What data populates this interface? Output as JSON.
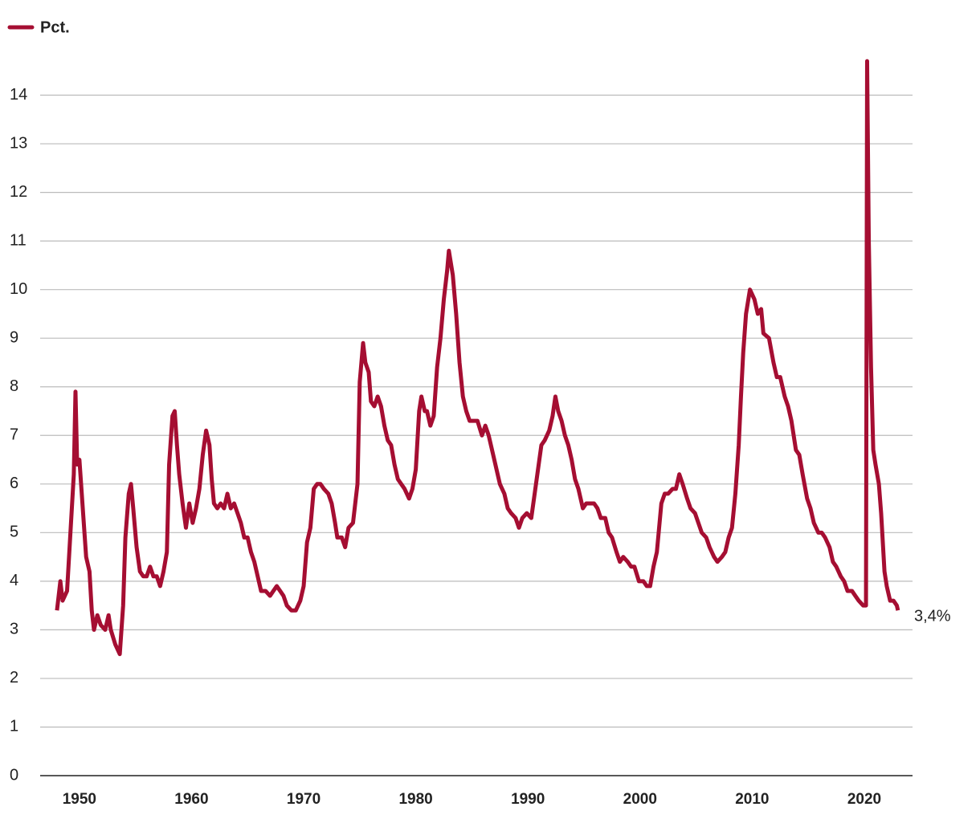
{
  "chart_data": {
    "type": "line",
    "legend_position": "top-left",
    "grid": true,
    "xlim": [
      1946.5,
      2024.3
    ],
    "ylim": [
      0,
      15
    ],
    "xticks": [
      1950,
      1960,
      1970,
      1980,
      1990,
      2000,
      2010,
      2020
    ],
    "yticks": [
      0,
      1,
      2,
      3,
      4,
      5,
      6,
      7,
      8,
      9,
      10,
      11,
      12,
      13,
      14
    ],
    "x": [
      1948.0,
      1948.3,
      1948.5,
      1948.9,
      1949.2,
      1949.5,
      1949.65,
      1949.8,
      1950.0,
      1950.3,
      1950.6,
      1950.9,
      1951.1,
      1951.3,
      1951.6,
      1951.9,
      1952.3,
      1952.6,
      1952.8,
      1953.2,
      1953.6,
      1953.9,
      1954.1,
      1954.4,
      1954.6,
      1954.8,
      1955.1,
      1955.4,
      1955.7,
      1956.0,
      1956.3,
      1956.6,
      1956.9,
      1957.2,
      1957.5,
      1957.8,
      1958.0,
      1958.3,
      1958.5,
      1958.7,
      1958.9,
      1959.2,
      1959.5,
      1959.8,
      1960.1,
      1960.4,
      1960.7,
      1961.0,
      1961.3,
      1961.6,
      1961.8,
      1962.0,
      1962.3,
      1962.6,
      1962.9,
      1963.2,
      1963.5,
      1963.8,
      1964.1,
      1964.4,
      1964.7,
      1965.0,
      1965.3,
      1965.6,
      1965.9,
      1966.2,
      1966.6,
      1967.0,
      1967.3,
      1967.6,
      1967.9,
      1968.2,
      1968.5,
      1968.9,
      1969.3,
      1969.7,
      1970.0,
      1970.3,
      1970.6,
      1970.9,
      1971.2,
      1971.5,
      1971.8,
      1972.2,
      1972.5,
      1972.8,
      1973.0,
      1973.4,
      1973.7,
      1974.0,
      1974.4,
      1974.8,
      1975.0,
      1975.3,
      1975.5,
      1975.8,
      1976.0,
      1976.3,
      1976.6,
      1976.9,
      1977.2,
      1977.5,
      1977.8,
      1978.1,
      1978.4,
      1978.7,
      1979.0,
      1979.4,
      1979.7,
      1980.0,
      1980.3,
      1980.5,
      1980.8,
      1981.0,
      1981.3,
      1981.6,
      1981.9,
      1982.2,
      1982.5,
      1982.8,
      1982.95,
      1983.3,
      1983.6,
      1983.9,
      1984.2,
      1984.5,
      1984.8,
      1985.2,
      1985.5,
      1985.9,
      1986.2,
      1986.5,
      1986.9,
      1987.2,
      1987.5,
      1987.9,
      1988.2,
      1988.5,
      1988.9,
      1989.2,
      1989.5,
      1989.9,
      1990.3,
      1990.6,
      1990.9,
      1991.2,
      1991.5,
      1991.9,
      1992.2,
      1992.45,
      1992.7,
      1993.0,
      1993.3,
      1993.6,
      1993.9,
      1994.2,
      1994.5,
      1994.9,
      1995.2,
      1995.5,
      1995.9,
      1996.2,
      1996.5,
      1996.9,
      1997.2,
      1997.5,
      1997.9,
      1998.2,
      1998.5,
      1998.9,
      1999.2,
      1999.5,
      1999.9,
      2000.3,
      2000.6,
      2000.9,
      2001.2,
      2001.5,
      2001.9,
      2002.2,
      2002.5,
      2002.9,
      2003.2,
      2003.5,
      2003.8,
      2004.2,
      2004.5,
      2004.9,
      2005.2,
      2005.5,
      2005.9,
      2006.2,
      2006.6,
      2006.9,
      2007.3,
      2007.6,
      2007.9,
      2008.2,
      2008.5,
      2008.8,
      2009.0,
      2009.2,
      2009.45,
      2009.8,
      2010.2,
      2010.5,
      2010.8,
      2011.0,
      2011.5,
      2011.9,
      2012.2,
      2012.5,
      2012.9,
      2013.2,
      2013.5,
      2013.9,
      2014.2,
      2014.5,
      2014.9,
      2015.2,
      2015.5,
      2015.9,
      2016.2,
      2016.5,
      2016.9,
      2017.2,
      2017.5,
      2017.9,
      2018.2,
      2018.5,
      2018.9,
      2019.2,
      2019.5,
      2019.9,
      2020.15,
      2020.25,
      2020.4,
      2020.6,
      2020.8,
      2021.0,
      2021.3,
      2021.5,
      2021.8,
      2022.0,
      2022.3,
      2022.6,
      2022.9,
      2023.0
    ],
    "series": [
      {
        "name": "Pct.",
        "color": "#a50e32",
        "values": [
          3.4,
          4.0,
          3.6,
          3.8,
          5.0,
          6.2,
          7.9,
          6.4,
          6.5,
          5.5,
          4.5,
          4.2,
          3.4,
          3.0,
          3.3,
          3.1,
          3.0,
          3.3,
          3.0,
          2.7,
          2.5,
          3.5,
          4.9,
          5.8,
          6.0,
          5.5,
          4.7,
          4.2,
          4.1,
          4.1,
          4.3,
          4.1,
          4.1,
          3.9,
          4.2,
          4.6,
          6.4,
          7.4,
          7.5,
          6.8,
          6.2,
          5.6,
          5.1,
          5.6,
          5.2,
          5.5,
          5.9,
          6.6,
          7.1,
          6.8,
          6.1,
          5.6,
          5.5,
          5.6,
          5.5,
          5.8,
          5.5,
          5.6,
          5.4,
          5.2,
          4.9,
          4.9,
          4.6,
          4.4,
          4.1,
          3.8,
          3.8,
          3.7,
          3.8,
          3.9,
          3.8,
          3.7,
          3.5,
          3.4,
          3.4,
          3.6,
          3.9,
          4.8,
          5.1,
          5.9,
          6.0,
          6.0,
          5.9,
          5.8,
          5.6,
          5.2,
          4.9,
          4.9,
          4.7,
          5.1,
          5.2,
          6.0,
          8.1,
          8.9,
          8.5,
          8.3,
          7.7,
          7.6,
          7.8,
          7.6,
          7.2,
          6.9,
          6.8,
          6.4,
          6.1,
          6.0,
          5.9,
          5.7,
          5.9,
          6.3,
          7.5,
          7.8,
          7.5,
          7.5,
          7.2,
          7.4,
          8.4,
          9.0,
          9.8,
          10.4,
          10.8,
          10.3,
          9.5,
          8.5,
          7.8,
          7.5,
          7.3,
          7.3,
          7.3,
          7.0,
          7.2,
          7.0,
          6.6,
          6.3,
          6.0,
          5.8,
          5.5,
          5.4,
          5.3,
          5.1,
          5.3,
          5.4,
          5.3,
          5.8,
          6.3,
          6.8,
          6.9,
          7.1,
          7.4,
          7.8,
          7.5,
          7.3,
          7.0,
          6.8,
          6.5,
          6.1,
          5.9,
          5.5,
          5.6,
          5.6,
          5.6,
          5.5,
          5.3,
          5.3,
          5.0,
          4.9,
          4.6,
          4.4,
          4.5,
          4.4,
          4.3,
          4.3,
          4.0,
          4.0,
          3.9,
          3.9,
          4.3,
          4.6,
          5.6,
          5.8,
          5.8,
          5.9,
          5.9,
          6.2,
          6.0,
          5.7,
          5.5,
          5.4,
          5.2,
          5.0,
          4.9,
          4.7,
          4.5,
          4.4,
          4.5,
          4.6,
          4.9,
          5.1,
          5.8,
          6.8,
          7.8,
          8.7,
          9.5,
          10.0,
          9.8,
          9.5,
          9.6,
          9.1,
          9.0,
          8.5,
          8.2,
          8.2,
          7.8,
          7.6,
          7.3,
          6.7,
          6.6,
          6.2,
          5.7,
          5.5,
          5.2,
          5.0,
          5.0,
          4.9,
          4.7,
          4.4,
          4.3,
          4.1,
          4.0,
          3.8,
          3.8,
          3.7,
          3.6,
          3.5,
          3.5,
          14.7,
          11.0,
          8.4,
          6.7,
          6.4,
          6.0,
          5.4,
          4.2,
          3.9,
          3.6,
          3.6,
          3.5,
          3.4
        ]
      }
    ],
    "annotations": [
      {
        "text": "3,4%",
        "x": 2023.0,
        "y": 3.4
      }
    ]
  }
}
